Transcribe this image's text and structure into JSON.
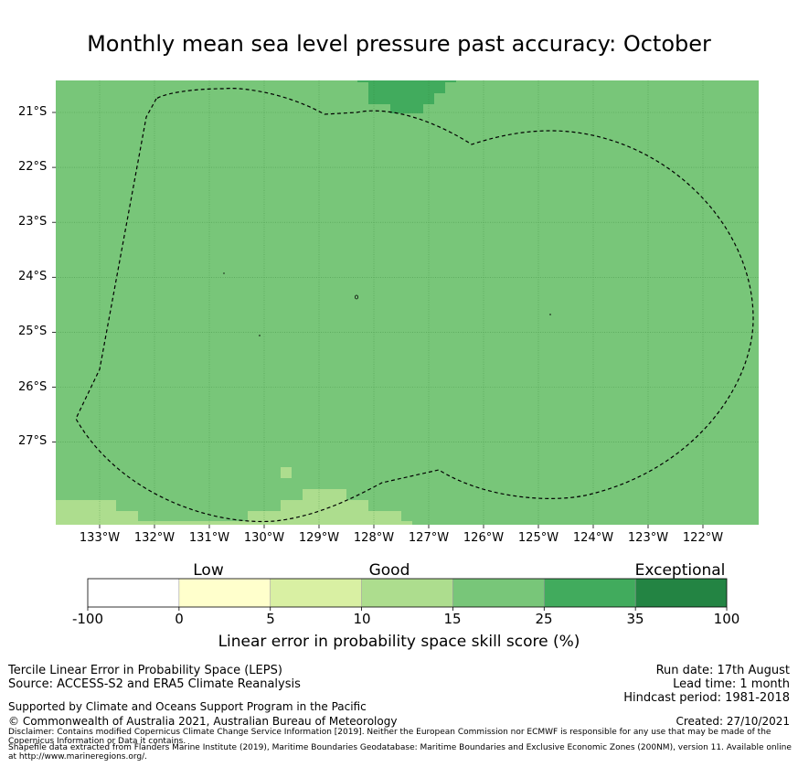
{
  "title": "Monthly mean sea level pressure past accuracy: October",
  "map": {
    "lon_labels": [
      "133°W",
      "132°W",
      "131°W",
      "130°W",
      "129°W",
      "128°W",
      "127°W",
      "126°W",
      "125°W",
      "124°W",
      "123°W",
      "122°W"
    ],
    "lat_labels": [
      "21°S",
      "22°S",
      "23°S",
      "24°S",
      "25°S",
      "26°S",
      "27°S"
    ],
    "extent": {
      "lon_min": -133.8,
      "lon_max": -121.0,
      "lat_max": -20.4,
      "lat_min": -28.5
    },
    "base_color": "#78c679"
  },
  "colorbar": {
    "category_labels": {
      "low": "Low",
      "good": "Good",
      "exceptional": "Exceptional"
    },
    "ticks": [
      "-100",
      "0",
      "5",
      "10",
      "15",
      "25",
      "35",
      "100"
    ],
    "colors": [
      "#ffffff",
      "#ffffcc",
      "#d9f0a3",
      "#addd8e",
      "#78c679",
      "#41ab5d",
      "#238443"
    ],
    "label": "Linear error in probability space skill score (%)"
  },
  "footer": {
    "line1": "Tercile Linear Error in Probability Space (LEPS)",
    "line2": "Source: ACCESS-S2 and ERA5 Climate Reanalysis",
    "line3": "Supported by Climate and Oceans Support Program in the Pacific",
    "line4": "© Commonwealth of Australia 2021, Australian Bureau of Meteorology",
    "run_date": "Run date: 17th August",
    "lead_time": "Lead time: 1 month",
    "hindcast": "Hindcast period: 1981-2018",
    "created": "Created: 27/10/2021",
    "disclaimer": "Disclaimer: Contains modified Copernicus Climate Change Service Information [2019]. Neither the European Commission nor ECMWF is responsible for any use that may be made of the Copernicus Information or Data it contains.",
    "shapefile": "Shapefile data extracted from Flanders Marine Institute (2019), Maritime Boundaries Geodatabase: Maritime Boundaries and Exclusive Economic Zones (200NM), version 11. Available online at http://www.marineregions.org/."
  }
}
